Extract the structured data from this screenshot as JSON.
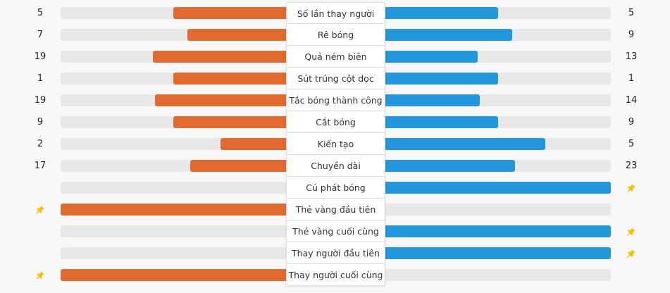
{
  "colors": {
    "home": "#e06a30",
    "away": "#2496dc",
    "track": "#e8e8e8",
    "pin": "#f2c200"
  },
  "icons": {
    "first_to_event": "pushpin-icon"
  },
  "stats": [
    {
      "label": "Số lần thay người",
      "home": "5",
      "away": "5",
      "home_share": 0.5,
      "away_share": 0.5
    },
    {
      "label": "Rê bóng",
      "home": "7",
      "away": "9",
      "home_share": 0.4375,
      "away_share": 0.5625
    },
    {
      "label": "Quả ném biên",
      "home": "19",
      "away": "13",
      "home_share": 0.59,
      "away_share": 0.41
    },
    {
      "label": "Sút trúng cột dọc",
      "home": "1",
      "away": "1",
      "home_share": 0.5,
      "away_share": 0.5
    },
    {
      "label": "Tắc bóng thành công",
      "home": "19",
      "away": "14",
      "home_share": 0.58,
      "away_share": 0.42
    },
    {
      "label": "Cắt bóng",
      "home": "9",
      "away": "9",
      "home_share": 0.5,
      "away_share": 0.5
    },
    {
      "label": "Kiến tạo",
      "home": "2",
      "away": "5",
      "home_share": 0.29,
      "away_share": 0.71
    },
    {
      "label": "Chuyền dài",
      "home": "17",
      "away": "23",
      "home_share": 0.425,
      "away_share": 0.575
    },
    {
      "label": "Cú phát bóng",
      "home": "",
      "away": "",
      "home_share": 0,
      "away_share": 1,
      "pin": "away"
    },
    {
      "label": "Thẻ vàng đầu tiên",
      "home": "",
      "away": "",
      "home_share": 1,
      "away_share": 0,
      "pin": "home"
    },
    {
      "label": "Thẻ vàng cuối cùng",
      "home": "",
      "away": "",
      "home_share": 0,
      "away_share": 1,
      "pin": "away"
    },
    {
      "label": "Thay người đầu tiên",
      "home": "",
      "away": "",
      "home_share": 0,
      "away_share": 1,
      "pin": "away"
    },
    {
      "label": "Thay người cuối cùng",
      "home": "",
      "away": "",
      "home_share": 1,
      "away_share": 0,
      "pin": "home"
    }
  ]
}
